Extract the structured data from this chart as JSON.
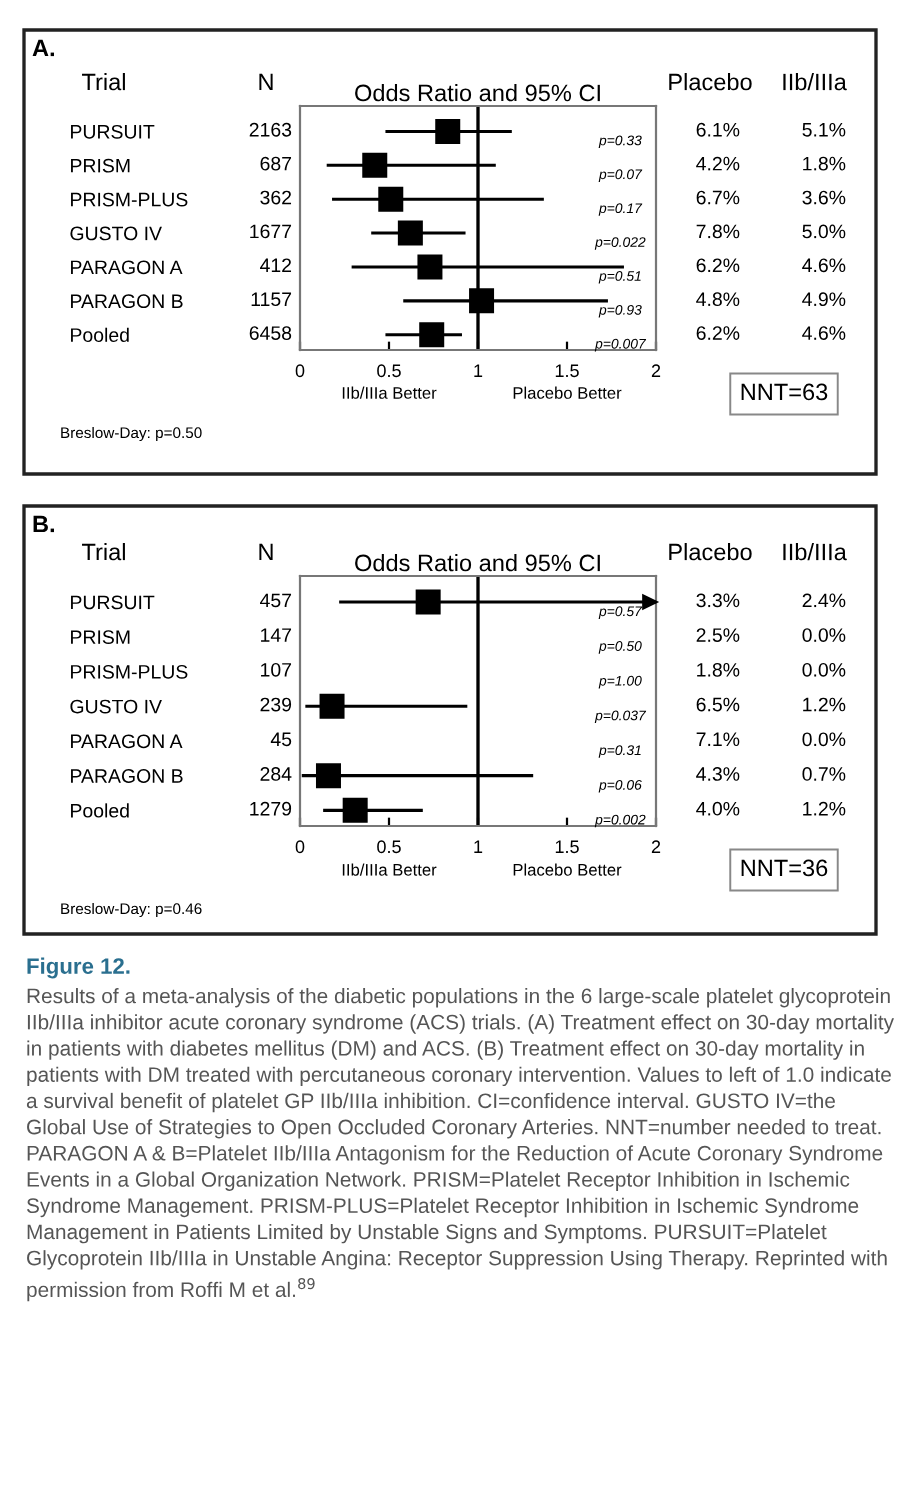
{
  "chart_data": [
    {
      "type": "scatter",
      "title": "A.",
      "ylabel": "Trial",
      "xlabel": "Odds Ratio and 95% CI",
      "orientation": "horizontal",
      "marker": "square",
      "categories": [
        "PURSUIT",
        "PRISM",
        "PRISM-PLUS",
        "GUSTO IV",
        "PARAGON A",
        "PARAGON B",
        "Pooled"
      ],
      "series": [
        {
          "type": "bar",
          "color": "#000000",
          "base": [
            0.48,
            0.15,
            0.18,
            0.4,
            0.29,
            0.58,
            0.48
          ],
          "values": [
            0.71,
            0.95,
            1.19,
            0.53,
            1.53,
            1.15,
            0.43
          ]
        },
        {
          "type": "scatter",
          "color": "#000000",
          "values": [
            0.83,
            0.42,
            0.51,
            0.62,
            0.73,
            1.02,
            0.74
          ]
        }
      ],
      "xlim": [
        0,
        2
      ],
      "xticks": [
        0,
        0.5,
        1,
        1.5,
        2
      ],
      "ref_lines": [
        {
          "axis": "x",
          "value": 1
        }
      ],
      "annotations": [
        "N",
        "Placebo",
        "IIb/IIIa",
        "2163",
        "p=0.33",
        "6.1%",
        "5.1%",
        "687",
        "p=0.07",
        "4.2%",
        "1.8%",
        "362",
        "p=0.17",
        "6.7%",
        "3.6%",
        "1677",
        "p=0.022",
        "7.8%",
        "5.0%",
        "412",
        "p=0.51",
        "6.2%",
        "4.6%",
        "1157",
        "p=0.93",
        "4.8%",
        "4.9%",
        "6458",
        "p=0.007",
        "6.2%",
        "4.6%",
        "IIb/IIIa Better",
        "Placebo Better",
        "NNT=63",
        "Breslow-Day: p=0.50"
      ]
    },
    {
      "type": "scatter",
      "title": "B.",
      "ylabel": "Trial",
      "xlabel": "Odds Ratio and 95% CI",
      "orientation": "horizontal",
      "marker": "square",
      "categories": [
        "PURSUIT",
        "PRISM",
        "PRISM-PLUS",
        "GUSTO IV",
        "PARAGON A",
        "PARAGON B",
        "Pooled"
      ],
      "series": [
        {
          "type": "bar",
          "color": "#000000",
          "base": [
            0.22,
            null,
            null,
            0.03,
            null,
            0.01,
            0.13
          ],
          "values": [
            1.78,
            null,
            null,
            0.91,
            null,
            1.3,
            0.56
          ]
        },
        {
          "type": "scatter",
          "color": "#000000",
          "values": [
            0.72,
            null,
            null,
            0.18,
            null,
            0.16,
            0.31
          ]
        }
      ],
      "xlim": [
        0,
        2
      ],
      "xticks": [
        0,
        0.5,
        1,
        1.5,
        2
      ],
      "ref_lines": [
        {
          "axis": "x",
          "value": 1
        }
      ],
      "annotations": [
        "N",
        "Placebo",
        "IIb/IIIa",
        "457",
        "p=0.57",
        "3.3%",
        "2.4%",
        "147",
        "p=0.50",
        "2.5%",
        "0.0%",
        "107",
        "p=1.00",
        "1.8%",
        "0.0%",
        "239",
        "p=0.037",
        "6.5%",
        "1.2%",
        "45",
        "p=0.31",
        "7.1%",
        "0.0%",
        "284",
        "p=0.06",
        "4.3%",
        "0.7%",
        "1279",
        "p=0.002",
        "4.0%",
        "1.2%",
        "IIb/IIIa Better",
        "Placebo Better",
        "NNT=36",
        "Breslow-Day: p=0.46",
        "Figure 12.",
        "Results of a meta-analysis of the diabetic populations in the 6 large-scale platelet glycoprotein IIb/IIIa inhibitor acute coronary syndrome (ACS) trials. (A) Treatment effect on 30-day mortality in patients with diabetes mellitus (DM) and ACS. (B) Treatment effect on 30-day mortality in patients with DM treated with percutaneous coronary intervention. Values to left of 1.0 indicate a survival benefit of platelet GP IIb/IIIa inhibition. CI=confidence interval. GUSTO IV=the Global Use of Strategies to Open Occluded Coronary Arteries. NNT=number needed to treat. PARAGON A & B=Platelet IIb/IIIa Antagonism for the Reduction of Acute Coronary Syndrome Events in a Global Organization Network. PRISM=Platelet Receptor Inhibition in Ischemic Syndrome Management. PRISM-PLUS=Platelet Receptor Inhibition in Ischemic Syndrome Management in Patients Limited by Unstable Signs and Symptoms. PURSUIT=Platelet Glycoprotein IIb/IIIa in Unstable Angina: Receptor Suppression Using Therapy. Reprinted with permission from Roffi M et al.$^{89}$"
      ]
    }
  ]
}
